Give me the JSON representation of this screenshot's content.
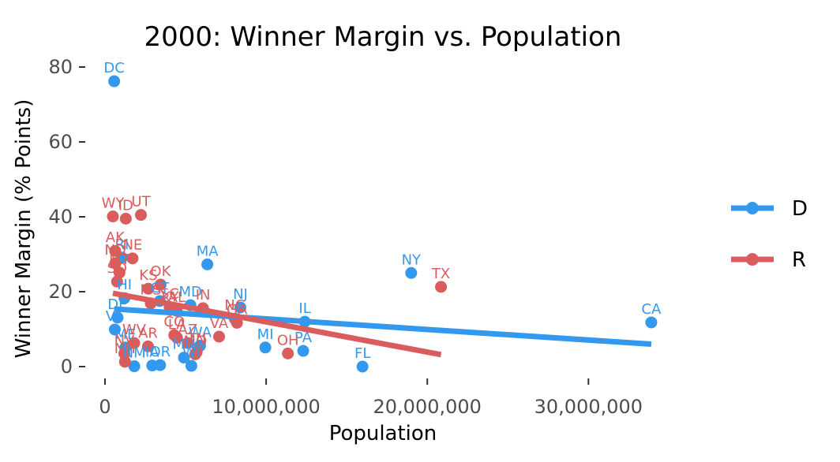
{
  "chart_data": {
    "type": "scatter",
    "title": "2000: Winner Margin vs. Population",
    "xlabel": "Population",
    "ylabel": "Winner Margin (% Points)",
    "xlim": [
      0,
      34000000
    ],
    "ylim": [
      0,
      80
    ],
    "x_ticks": [
      0,
      10000000,
      20000000,
      30000000
    ],
    "x_tick_labels": [
      "0",
      "10,000,000",
      "20,000,000",
      "30,000,000"
    ],
    "y_ticks": [
      0,
      20,
      40,
      60,
      80
    ],
    "y_tick_labels": [
      "0",
      "20",
      "40",
      "60",
      "80"
    ],
    "grid": false,
    "legend_position": "right",
    "colors": {
      "D": "#3399ee",
      "R": "#d95d5d"
    },
    "legend": [
      {
        "key": "D",
        "label": "D"
      },
      {
        "key": "R",
        "label": "R"
      }
    ],
    "series": [
      {
        "name": "D",
        "points": [
          {
            "label": "DC",
            "x": 570000,
            "y": 76.2
          },
          {
            "label": "CA",
            "x": 33900000,
            "y": 11.8
          },
          {
            "label": "NY",
            "x": 19000000,
            "y": 25.0
          },
          {
            "label": "MA",
            "x": 6350000,
            "y": 27.3
          },
          {
            "label": "NJ",
            "x": 8400000,
            "y": 15.8
          },
          {
            "label": "IL",
            "x": 12400000,
            "y": 12.0
          },
          {
            "label": "MD",
            "x": 5300000,
            "y": 16.4
          },
          {
            "label": "RI",
            "x": 1050000,
            "y": 29.1
          },
          {
            "label": "HI",
            "x": 1210000,
            "y": 18.3
          },
          {
            "label": "DE",
            "x": 780000,
            "y": 13.1
          },
          {
            "label": "VT",
            "x": 610000,
            "y": 9.9
          },
          {
            "label": "CT",
            "x": 3400000,
            "y": 17.5
          },
          {
            "label": "MI",
            "x": 9950000,
            "y": 5.1
          },
          {
            "label": "PA",
            "x": 12300000,
            "y": 4.2
          },
          {
            "label": "FL",
            "x": 15980000,
            "y": 0.0
          },
          {
            "label": "WA",
            "x": 5900000,
            "y": 5.6
          },
          {
            "label": "ME",
            "x": 1270000,
            "y": 5.1
          },
          {
            "label": "MN",
            "x": 4900000,
            "y": 2.4
          },
          {
            "label": "OR",
            "x": 3420000,
            "y": 0.4
          },
          {
            "label": "IA",
            "x": 2930000,
            "y": 0.3
          },
          {
            "label": "NM",
            "x": 1820000,
            "y": 0.1
          },
          {
            "label": "WI",
            "x": 5360000,
            "y": 0.2
          }
        ]
      },
      {
        "name": "R",
        "points": [
          {
            "label": "WY",
            "x": 490000,
            "y": 40.1
          },
          {
            "label": "UT",
            "x": 2230000,
            "y": 40.5
          },
          {
            "label": "ID",
            "x": 1290000,
            "y": 39.5
          },
          {
            "label": "AK",
            "x": 630000,
            "y": 30.9
          },
          {
            "label": "NE",
            "x": 1710000,
            "y": 28.9
          },
          {
            "label": "ND",
            "x": 640000,
            "y": 27.6
          },
          {
            "label": "SD",
            "x": 750000,
            "y": 22.7
          },
          {
            "label": "MT",
            "x": 900000,
            "y": 25.1
          },
          {
            "label": "KS",
            "x": 2690000,
            "y": 20.8
          },
          {
            "label": "OK",
            "x": 3450000,
            "y": 21.9
          },
          {
            "label": "TX",
            "x": 20850000,
            "y": 21.3
          },
          {
            "label": "MS",
            "x": 2840000,
            "y": 16.9
          },
          {
            "label": "AL",
            "x": 4450000,
            "y": 14.9
          },
          {
            "label": "IN",
            "x": 6080000,
            "y": 15.6
          },
          {
            "label": "SC",
            "x": 4010000,
            "y": 15.9
          },
          {
            "label": "NC",
            "x": 8050000,
            "y": 12.8
          },
          {
            "label": "GA",
            "x": 8190000,
            "y": 11.7
          },
          {
            "label": "KY",
            "x": 4040000,
            "y": 15.1
          },
          {
            "label": "VA",
            "x": 7080000,
            "y": 8.0
          },
          {
            "label": "CO",
            "x": 4300000,
            "y": 8.4
          },
          {
            "label": "LA",
            "x": 4470000,
            "y": 7.7
          },
          {
            "label": "AZ",
            "x": 5130000,
            "y": 6.3
          },
          {
            "label": "WV",
            "x": 1810000,
            "y": 6.3
          },
          {
            "label": "AR",
            "x": 2670000,
            "y": 5.4
          },
          {
            "label": "TN",
            "x": 5690000,
            "y": 3.9
          },
          {
            "label": "MO",
            "x": 5600000,
            "y": 3.3
          },
          {
            "label": "OH",
            "x": 11350000,
            "y": 3.5
          },
          {
            "label": "NV",
            "x": 1200000,
            "y": 3.5
          },
          {
            "label": "NH",
            "x": 1240000,
            "y": 1.3
          }
        ]
      }
    ],
    "trend_lines": [
      {
        "series": "D",
        "x": [
          570000,
          33900000
        ],
        "y": [
          15.4,
          6.0
        ]
      },
      {
        "series": "R",
        "x": [
          490000,
          20850000
        ],
        "y": [
          19.6,
          3.2
        ]
      }
    ]
  }
}
